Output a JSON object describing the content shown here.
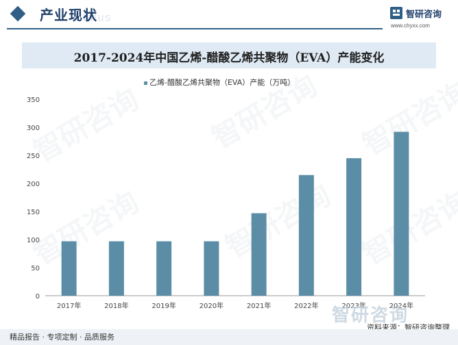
{
  "header": {
    "section_title": "产业现状",
    "ghost_text": "Status",
    "logo_text": "智研咨询",
    "logo_url": "www.chyxx.com"
  },
  "chart_data": {
    "type": "bar",
    "title": "2017-2024年中国乙烯-醋酸乙烯共聚物（EVA）产能变化",
    "legend": "乙烯-醋酸乙烯共聚物（EVA）产能（万吨）",
    "categories": [
      "2017年",
      "2018年",
      "2019年",
      "2020年",
      "2021年",
      "2022年",
      "2023年",
      "2024年"
    ],
    "values": [
      97,
      97,
      97,
      97,
      147,
      215,
      245,
      292
    ],
    "ylim": [
      0,
      350
    ],
    "yticks": [
      0,
      50,
      100,
      150,
      200,
      250,
      300,
      350
    ],
    "bar_color": "#5b8ea6"
  },
  "footer": {
    "left": "精品报告 · 专项定制 · 品质服务",
    "right": "资料来源：智研咨询整理",
    "watermark": "智研咨询"
  }
}
